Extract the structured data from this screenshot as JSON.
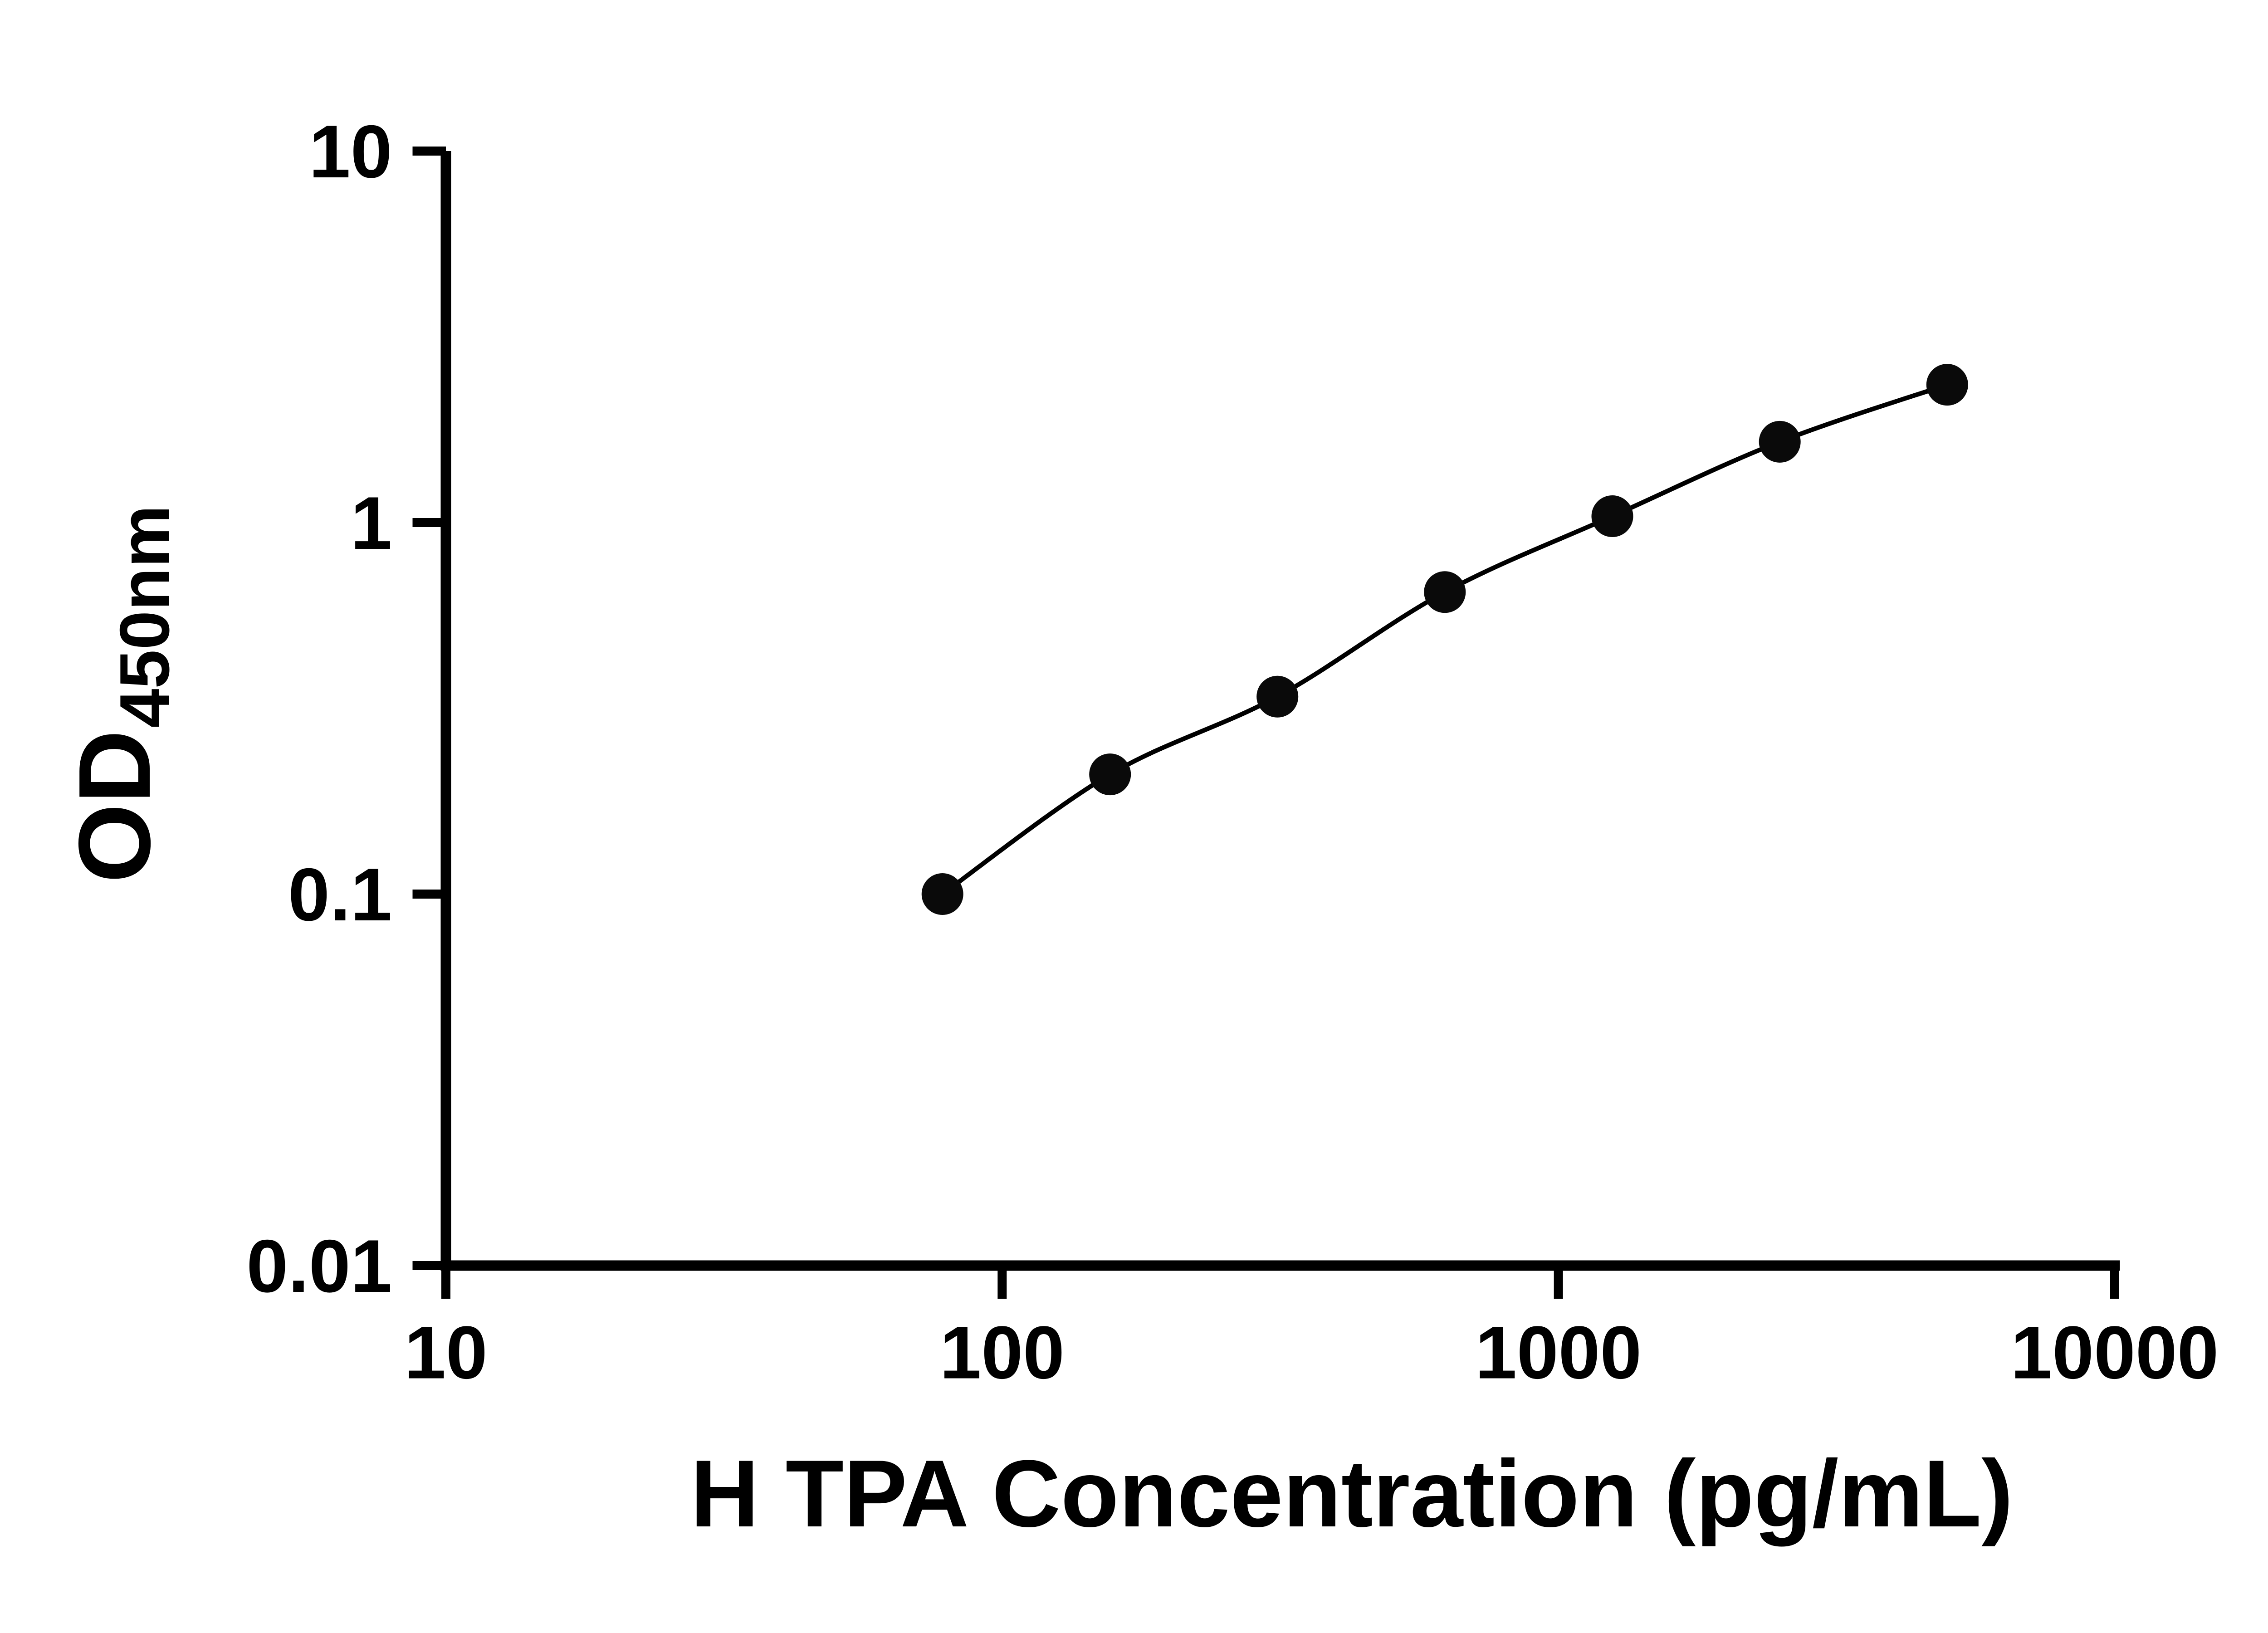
{
  "figure": {
    "background": "#ffffff",
    "axis_color": "#000000",
    "marker_color": "#0a0a0a",
    "line_color": "#000000"
  },
  "chart_data": {
    "type": "line",
    "title": "",
    "xlabel": "H TPA Concentration (pg/mL)",
    "ylabel": "OD450nm",
    "ylabel_main": "OD",
    "ylabel_sub": "450nm",
    "x_scale": "log",
    "y_scale": "log",
    "xlim": [
      10,
      10000
    ],
    "ylim": [
      0.01,
      10
    ],
    "grid": false,
    "legend": null,
    "marker": "filled-circle",
    "x": [
      78.1,
      156.3,
      312.5,
      625,
      1250,
      2500,
      5000
    ],
    "y": [
      0.1,
      0.21,
      0.34,
      0.65,
      1.04,
      1.65,
      2.35
    ],
    "x_ticks": [
      {
        "v": 10,
        "label": "10"
      },
      {
        "v": 100,
        "label": "100"
      },
      {
        "v": 1000,
        "label": "1000"
      },
      {
        "v": 10000,
        "label": "10000"
      }
    ],
    "y_ticks": [
      {
        "v": 0.01,
        "label": "0.01"
      },
      {
        "v": 0.1,
        "label": "0.1"
      },
      {
        "v": 1,
        "label": "1"
      },
      {
        "v": 10,
        "label": "10"
      }
    ]
  }
}
